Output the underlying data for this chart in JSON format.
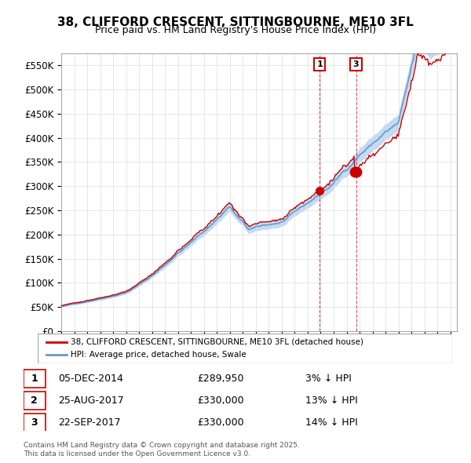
{
  "title": "38, CLIFFORD CRESCENT, SITTINGBOURNE, ME10 3FL",
  "subtitle": "Price paid vs. HM Land Registry's House Price Index (HPI)",
  "ylabel": "",
  "ylim": [
    0,
    575000
  ],
  "yticks": [
    0,
    50000,
    100000,
    150000,
    200000,
    250000,
    300000,
    350000,
    400000,
    450000,
    500000,
    550000
  ],
  "ytick_labels": [
    "£0",
    "£50K",
    "£100K",
    "£150K",
    "£200K",
    "£250K",
    "£300K",
    "£350K",
    "£400K",
    "£450K",
    "£500K",
    "£550K"
  ],
  "red_line_color": "#cc0000",
  "blue_line_color": "#6699cc",
  "blue_fill_color": "#aaccee",
  "marker1_year": 2014.92,
  "marker2_year": 2017.65,
  "marker3_year": 2017.73,
  "marker1_value": 289950,
  "marker2_value": 330000,
  "marker3_value": 330000,
  "transaction1": {
    "label": "1",
    "date": "05-DEC-2014",
    "price": "£289,950",
    "hpi": "3% ↓ HPI"
  },
  "transaction2": {
    "label": "2",
    "date": "25-AUG-2017",
    "price": "£330,000",
    "hpi": "13% ↓ HPI"
  },
  "transaction3": {
    "label": "3",
    "date": "22-SEP-2017",
    "price": "£330,000",
    "hpi": "14% ↓ HPI"
  },
  "legend1": "38, CLIFFORD CRESCENT, SITTINGBOURNE, ME10 3FL (detached house)",
  "legend2": "HPI: Average price, detached house, Swale",
  "footnote": "Contains HM Land Registry data © Crown copyright and database right 2025.\nThis data is licensed under the Open Government Licence v3.0.",
  "background_color": "#ffffff",
  "grid_color": "#dddddd"
}
